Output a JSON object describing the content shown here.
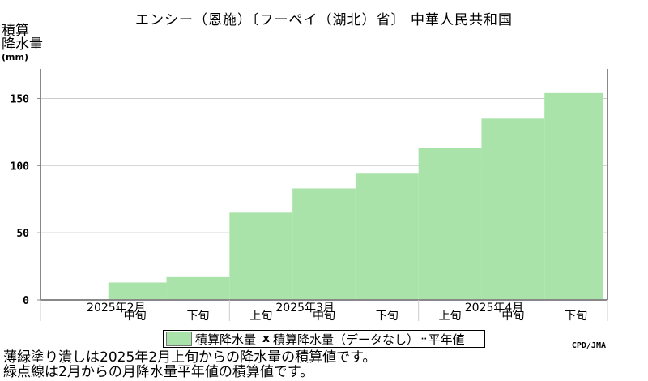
{
  "title": "エンシー（恩施）〔フーペイ（湖北）省〕 中華人民共和国",
  "ylabel_lines": [
    "積算",
    "降水量"
  ],
  "ylabel_unit": "(mm)",
  "legend": {
    "series_label": "積算降水量",
    "x_marker": "x",
    "nodata_label": "積算降水量（データなし）",
    "normal_label": "平年値"
  },
  "credit": "CPD/JMA",
  "notes": [
    "薄緑塗り潰しは2025年2月上旬からの降水量の積算値です。",
    "緑点線は2月からの月降水量平年値の積算値です。"
  ],
  "colors": {
    "fill": "#aae3aa",
    "grid": "#cccccc",
    "axis": "#888888"
  },
  "chart_data": {
    "type": "area",
    "step": true,
    "months": [
      "2025年2月",
      "2025年3月",
      "2025年4月"
    ],
    "dekads": [
      "上旬",
      "中旬",
      "下旬"
    ],
    "x": [
      "2025年2月上旬",
      "2025年2月中旬",
      "2025年2月下旬",
      "2025年3月上旬",
      "2025年3月中旬",
      "2025年3月下旬",
      "2025年4月上旬",
      "2025年4月中旬",
      "2025年4月下旬"
    ],
    "x_tick_labels": [
      "",
      "中旬",
      "下旬",
      "上旬",
      "中旬",
      "下旬",
      "上旬",
      "中旬",
      "下旬"
    ],
    "series": [
      {
        "name": "積算降水量",
        "values": [
          null,
          13,
          17,
          65,
          83,
          94,
          113,
          135,
          154
        ]
      }
    ],
    "y_ticks": [
      0,
      50,
      100,
      150
    ],
    "ylim": [
      0,
      172
    ],
    "grid": true,
    "legend_position": "bottom"
  }
}
